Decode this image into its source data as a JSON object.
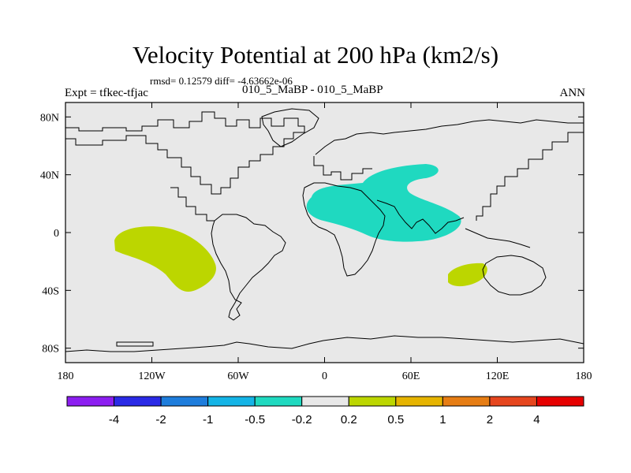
{
  "title": "Velocity Potential at 200 hPa (km2/s)",
  "stats_text": "rmsd= 0.12579 diff= -4.63662e-06",
  "experiment_text": "Expt = tfkec-tfjac",
  "subtitle": "010_5_MaBP - 010_5_MaBP",
  "season": "ANN",
  "map": {
    "background_color": "#e8e8e8",
    "lon_range": [
      -180,
      180
    ],
    "lat_range": [
      -90,
      90
    ],
    "lon_ticks": [
      "180",
      "120W",
      "60W",
      "0",
      "60E",
      "120E",
      "180"
    ],
    "lat_ticks": [
      "80N",
      "40N",
      "0",
      "40S",
      "80S"
    ],
    "anomalies": [
      {
        "region": "Asia / Indian Ocean / Africa",
        "value_bin": "-0.5 to -0.2",
        "color": "#1fd9c0"
      },
      {
        "region": "Southeast Pacific",
        "value_bin": "0.2 to 0.5",
        "color": "#bcd600"
      },
      {
        "region": "Southeast Indian Ocean",
        "value_bin": "0.2 to 0.5",
        "color": "#bcd600"
      }
    ]
  },
  "colorbar": {
    "labels": [
      "-4",
      "-2",
      "-1",
      "-0.5",
      "-0.2",
      "0.2",
      "0.5",
      "1",
      "2",
      "4"
    ],
    "colors": [
      "#8c1ef0",
      "#2a2ae6",
      "#1e7ddc",
      "#14b4e6",
      "#1fd9c0",
      "#e8e8e8",
      "#bcd600",
      "#e6b400",
      "#e67d14",
      "#e6461e",
      "#e60000"
    ]
  }
}
